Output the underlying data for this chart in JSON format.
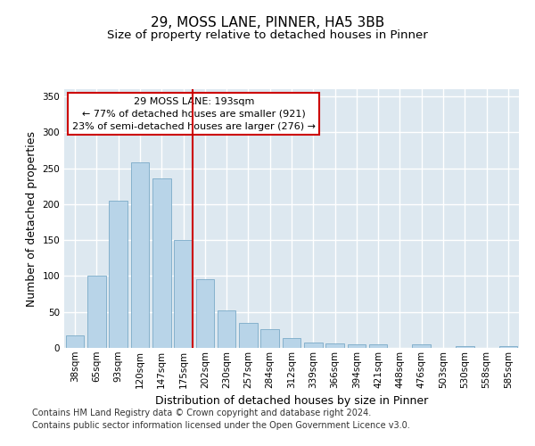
{
  "title": "29, MOSS LANE, PINNER, HA5 3BB",
  "subtitle": "Size of property relative to detached houses in Pinner",
  "xlabel": "Distribution of detached houses by size in Pinner",
  "ylabel": "Number of detached properties",
  "categories": [
    "38sqm",
    "65sqm",
    "93sqm",
    "120sqm",
    "147sqm",
    "175sqm",
    "202sqm",
    "230sqm",
    "257sqm",
    "284sqm",
    "312sqm",
    "339sqm",
    "366sqm",
    "394sqm",
    "421sqm",
    "448sqm",
    "476sqm",
    "503sqm",
    "530sqm",
    "558sqm",
    "585sqm"
  ],
  "values": [
    18,
    100,
    205,
    258,
    236,
    150,
    96,
    52,
    35,
    26,
    14,
    8,
    6,
    5,
    5,
    0,
    5,
    0,
    2,
    0,
    2
  ],
  "bar_color": "#b8d4e8",
  "bar_edge_color": "#7aaac8",
  "bg_color": "#dde8f0",
  "grid_color": "#ffffff",
  "vline_color": "#cc0000",
  "annotation_title": "29 MOSS LANE: 193sqm",
  "annotation_line1": "← 77% of detached houses are smaller (921)",
  "annotation_line2": "23% of semi-detached houses are larger (276) →",
  "annotation_box_color": "#ffffff",
  "annotation_box_edge": "#cc0000",
  "footer1": "Contains HM Land Registry data © Crown copyright and database right 2024.",
  "footer2": "Contains public sector information licensed under the Open Government Licence v3.0.",
  "ylim": [
    0,
    360
  ],
  "yticks": [
    0,
    50,
    100,
    150,
    200,
    250,
    300,
    350
  ],
  "title_fontsize": 11,
  "subtitle_fontsize": 9.5,
  "axis_label_fontsize": 9,
  "tick_fontsize": 7.5,
  "footer_fontsize": 7,
  "ann_fontsize": 8
}
